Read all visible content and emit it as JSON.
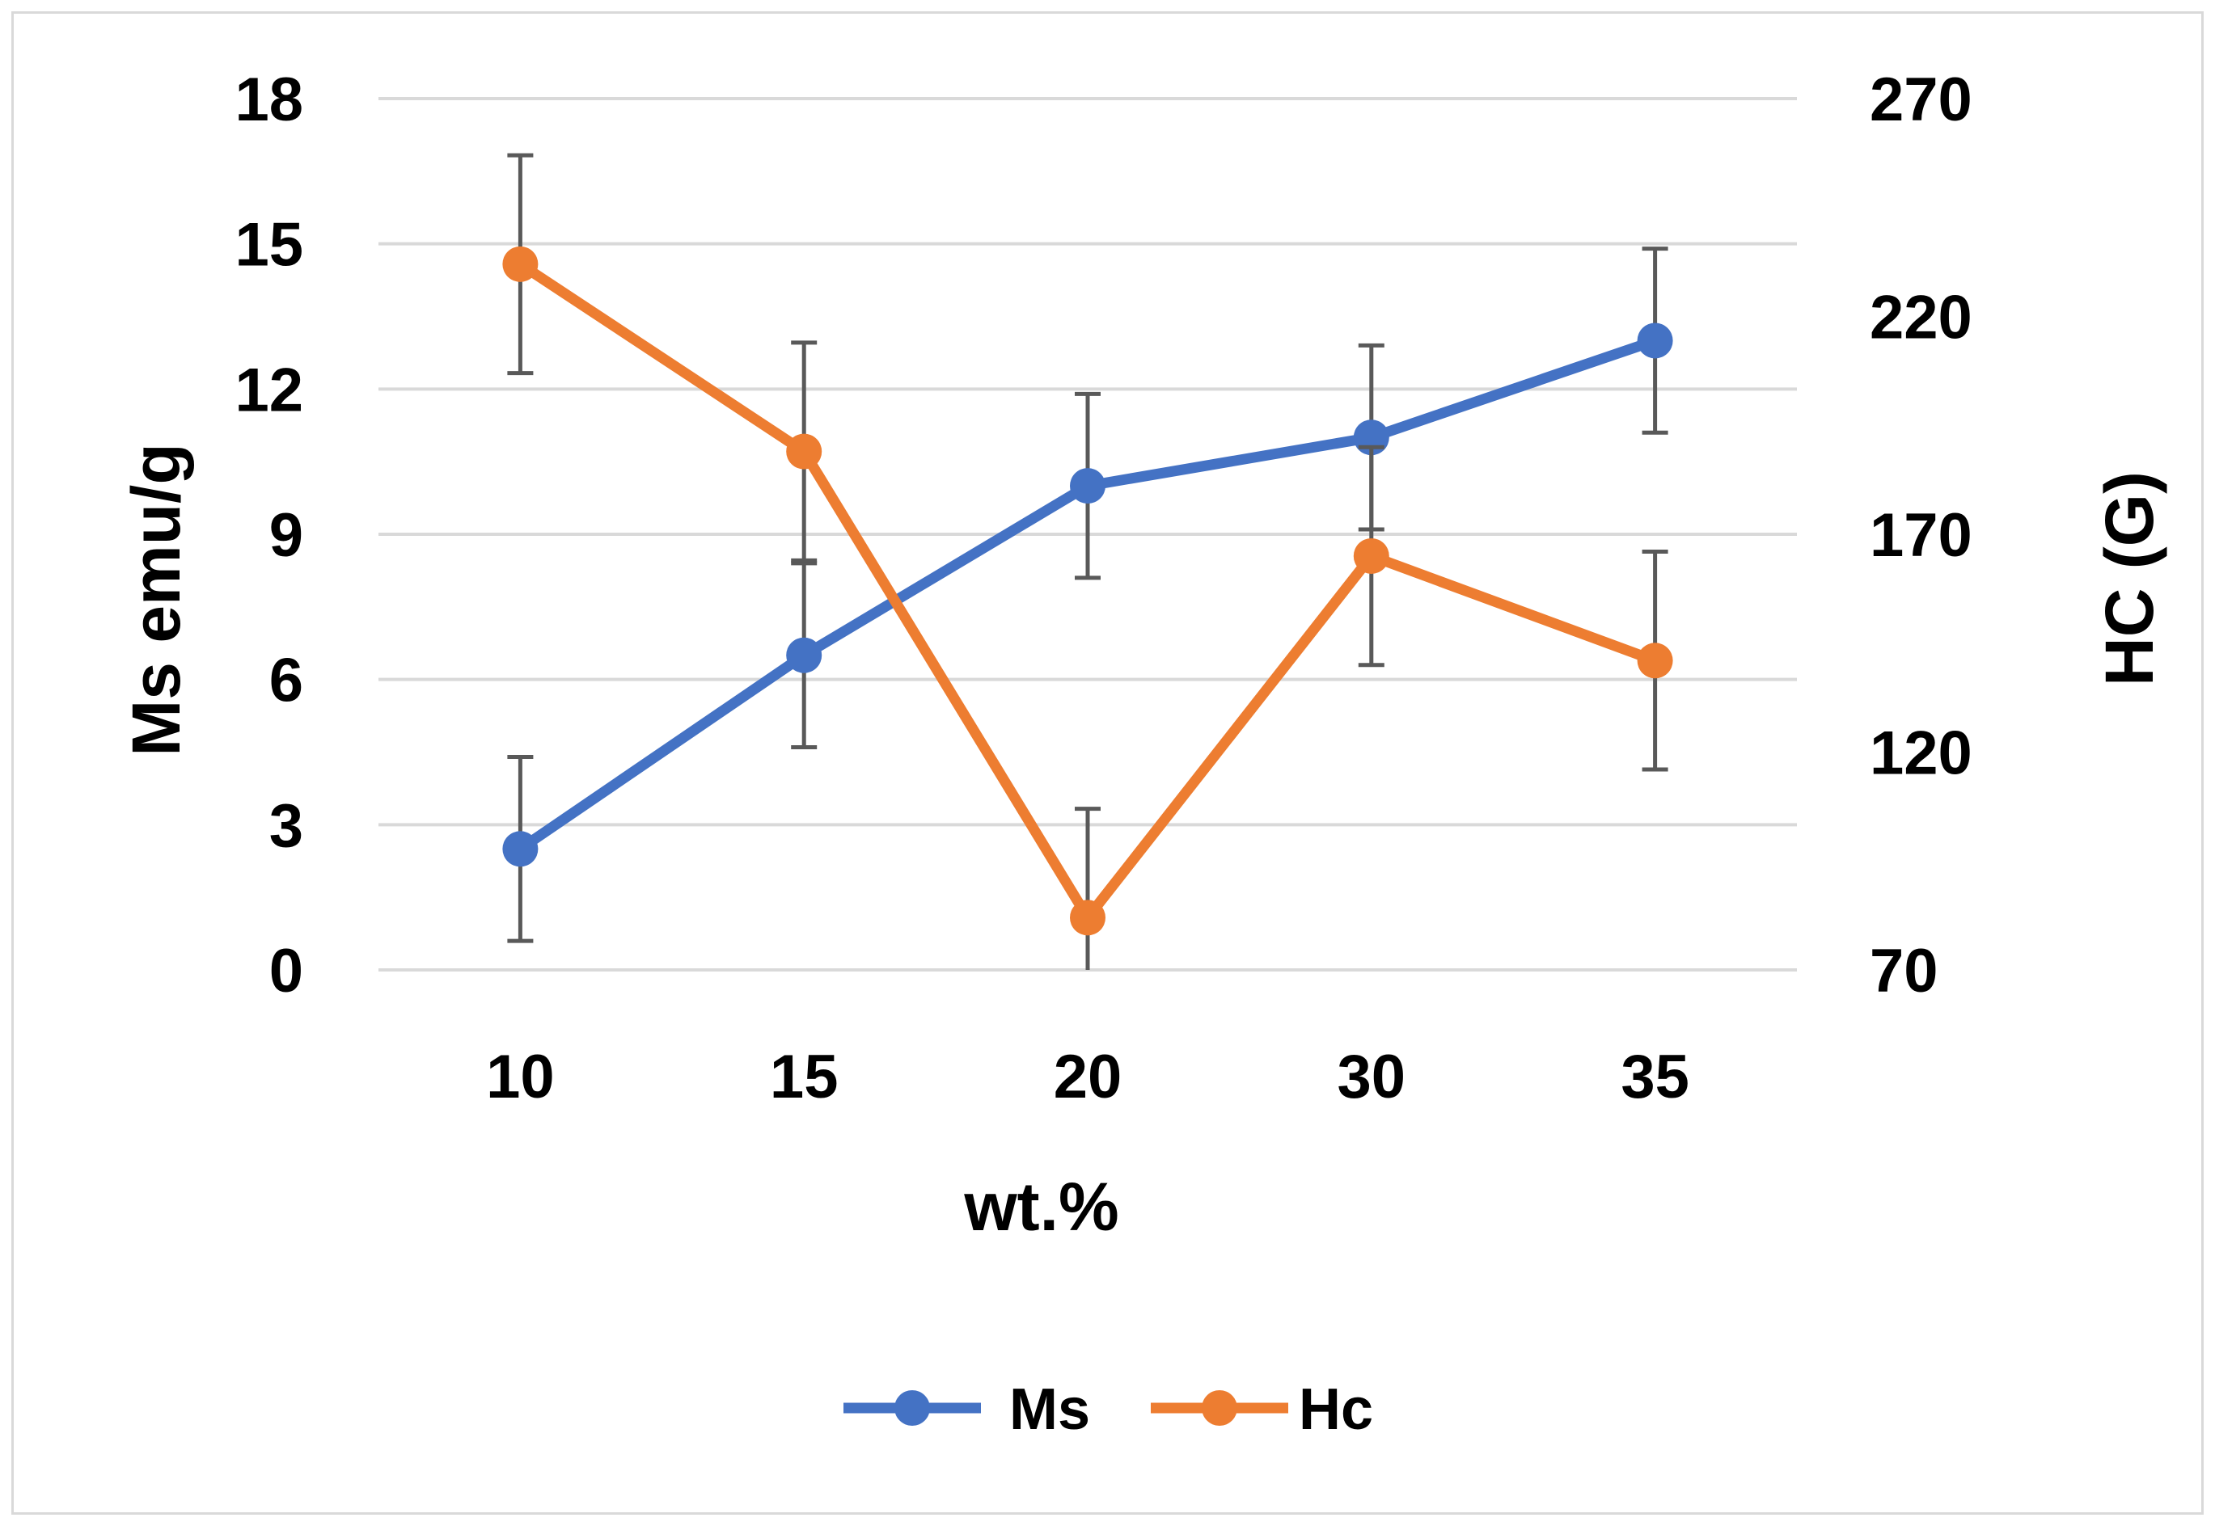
{
  "chart_data": {
    "type": "line",
    "title": "",
    "xlabel": "wt.%",
    "ylabel": "Ms emu/g",
    "y2label": "HC (G)",
    "categories": [
      "10",
      "15",
      "20",
      "30",
      "35"
    ],
    "ylim": [
      0,
      18
    ],
    "y2lim": [
      70,
      270
    ],
    "yticks": [
      "0",
      "3",
      "6",
      "9",
      "12",
      "15",
      "18"
    ],
    "y2ticks": [
      "70",
      "120",
      "170",
      "220",
      "270"
    ],
    "grid": true,
    "legend_position": "bottom",
    "series": [
      {
        "name": "Ms",
        "axis": "left",
        "color": "#4472c4",
        "values": [
          2.5,
          6.5,
          10.0,
          11.0,
          13.0
        ],
        "error": [
          1.9,
          1.9,
          1.9,
          1.9,
          1.9
        ]
      },
      {
        "name": "Hc",
        "axis": "right",
        "color": "#ed7d31",
        "values": [
          232,
          189,
          82,
          165,
          141
        ],
        "error": [
          25,
          25,
          25,
          25,
          25
        ]
      }
    ]
  }
}
